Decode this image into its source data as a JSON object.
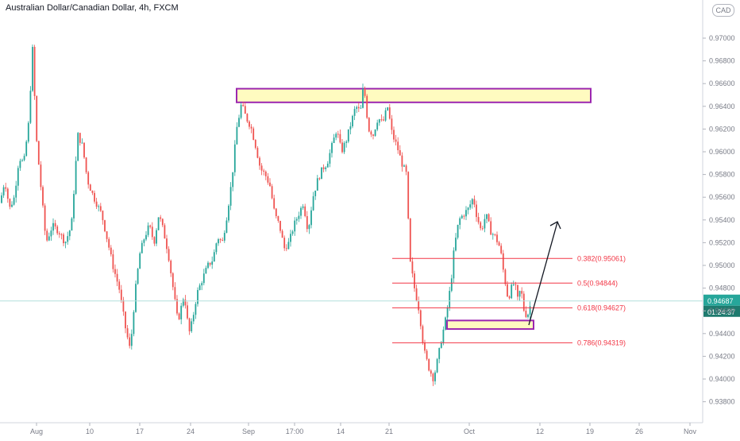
{
  "header": {
    "title": "Australian Dollar/Canadian Dollar, 4h, FXCM",
    "currency": "CAD"
  },
  "price_labels": {
    "last_price": "0.94687",
    "countdown": "01:24:37"
  },
  "colors": {
    "up": "#26a69a",
    "down": "#ef5350",
    "fib": "#f23645",
    "zone_fill": "#fffbc0",
    "zone_stroke": "#9c27b0",
    "last_line": "#b2dfdb",
    "last_bg": "#26a69a",
    "countdown_bg": "#1e7a6e",
    "axis_text": "#787b86",
    "wick": "#787b86",
    "arrow": "#131722"
  },
  "chart_data": {
    "type": "candlestick",
    "title": "Australian Dollar/Canadian Dollar, 4h, FXCM",
    "y_ticks": [
      "0.97000",
      "0.96800",
      "0.96600",
      "0.96400",
      "0.96200",
      "0.96000",
      "0.95800",
      "0.95600",
      "0.95400",
      "0.95200",
      "0.95000",
      "0.94800",
      "0.94600",
      "0.94400",
      "0.94200",
      "0.94000",
      "0.93800"
    ],
    "ylim": [
      0.9364,
      0.9745
    ],
    "x_ticks": [
      "Aug",
      "10",
      "17",
      "24",
      "Sep",
      "17:00",
      "14",
      "21",
      "Oct",
      "12",
      "19",
      "26",
      "Nov"
    ],
    "last_price": 0.94687,
    "path": [
      [
        0,
        0.9555
      ],
      [
        6,
        0.9575
      ],
      [
        12,
        0.955
      ],
      [
        18,
        0.956
      ],
      [
        24,
        0.9595
      ],
      [
        30,
        0.959
      ],
      [
        36,
        0.9625
      ],
      [
        41,
        0.969
      ],
      [
        46,
        0.961
      ],
      [
        52,
        0.9565
      ],
      [
        58,
        0.952
      ],
      [
        66,
        0.9535
      ],
      [
        74,
        0.953
      ],
      [
        82,
        0.952
      ],
      [
        90,
        0.9535
      ],
      [
        98,
        0.9615
      ],
      [
        104,
        0.9605
      ],
      [
        110,
        0.9575
      ],
      [
        118,
        0.956
      ],
      [
        128,
        0.9545
      ],
      [
        136,
        0.952
      ],
      [
        142,
        0.95
      ],
      [
        150,
        0.948
      ],
      [
        158,
        0.9445
      ],
      [
        164,
        0.9425
      ],
      [
        170,
        0.9475
      ],
      [
        176,
        0.951
      ],
      [
        182,
        0.9525
      ],
      [
        188,
        0.9535
      ],
      [
        194,
        0.952
      ],
      [
        200,
        0.9545
      ],
      [
        206,
        0.953
      ],
      [
        212,
        0.951
      ],
      [
        218,
        0.948
      ],
      [
        224,
        0.945
      ],
      [
        232,
        0.9475
      ],
      [
        238,
        0.944
      ],
      [
        242,
        0.945
      ],
      [
        248,
        0.9475
      ],
      [
        256,
        0.949
      ],
      [
        262,
        0.95
      ],
      [
        268,
        0.9505
      ],
      [
        274,
        0.9525
      ],
      [
        280,
        0.952
      ],
      [
        286,
        0.9545
      ],
      [
        292,
        0.9575
      ],
      [
        298,
        0.962
      ],
      [
        304,
        0.9642
      ],
      [
        310,
        0.963
      ],
      [
        316,
        0.9622
      ],
      [
        322,
        0.9605
      ],
      [
        328,
        0.9585
      ],
      [
        334,
        0.958
      ],
      [
        340,
        0.957
      ],
      [
        346,
        0.9545
      ],
      [
        352,
        0.9535
      ],
      [
        358,
        0.9515
      ],
      [
        364,
        0.952
      ],
      [
        370,
        0.9535
      ],
      [
        376,
        0.9545
      ],
      [
        382,
        0.9555
      ],
      [
        388,
        0.953
      ],
      [
        394,
        0.956
      ],
      [
        400,
        0.9575
      ],
      [
        406,
        0.9585
      ],
      [
        412,
        0.959
      ],
      [
        418,
        0.9605
      ],
      [
        424,
        0.962
      ],
      [
        430,
        0.96
      ],
      [
        436,
        0.961
      ],
      [
        442,
        0.9625
      ],
      [
        448,
        0.964
      ],
      [
        454,
        0.9635
      ],
      [
        458,
        0.966
      ],
      [
        464,
        0.962
      ],
      [
        470,
        0.9615
      ],
      [
        476,
        0.963
      ],
      [
        482,
        0.9625
      ],
      [
        488,
        0.964
      ],
      [
        494,
        0.9615
      ],
      [
        500,
        0.9605
      ],
      [
        506,
        0.959
      ],
      [
        512,
        0.958
      ],
      [
        516,
        0.9505
      ],
      [
        522,
        0.948
      ],
      [
        528,
        0.946
      ],
      [
        534,
        0.9425
      ],
      [
        540,
        0.941
      ],
      [
        546,
        0.94
      ],
      [
        552,
        0.942
      ],
      [
        556,
        0.9435
      ],
      [
        562,
        0.9455
      ],
      [
        568,
        0.9485
      ],
      [
        572,
        0.9515
      ],
      [
        578,
        0.954
      ],
      [
        584,
        0.9545
      ],
      [
        590,
        0.955
      ],
      [
        596,
        0.956
      ],
      [
        600,
        0.9545
      ],
      [
        606,
        0.953
      ],
      [
        612,
        0.9545
      ],
      [
        618,
        0.953
      ],
      [
        624,
        0.9525
      ],
      [
        630,
        0.9515
      ],
      [
        634,
        0.9495
      ],
      [
        640,
        0.947
      ],
      [
        644,
        0.948
      ],
      [
        648,
        0.9485
      ],
      [
        652,
        0.947
      ],
      [
        656,
        0.948
      ],
      [
        660,
        0.946
      ],
      [
        664,
        0.9455
      ],
      [
        668,
        0.9465
      ]
    ]
  },
  "fib_levels": [
    {
      "label": "0.382(0.95061)",
      "price": 0.95061
    },
    {
      "label": "0.5(0.94844)",
      "price": 0.94844
    },
    {
      "label": "0.618(0.94627)",
      "price": 0.94627
    },
    {
      "label": "0.786(0.94319)",
      "price": 0.94319
    }
  ],
  "zones": {
    "resistance": {
      "top": 0.96555,
      "bottom": 0.96435
    },
    "support": {
      "top": 0.94515,
      "bottom": 0.9444
    }
  }
}
